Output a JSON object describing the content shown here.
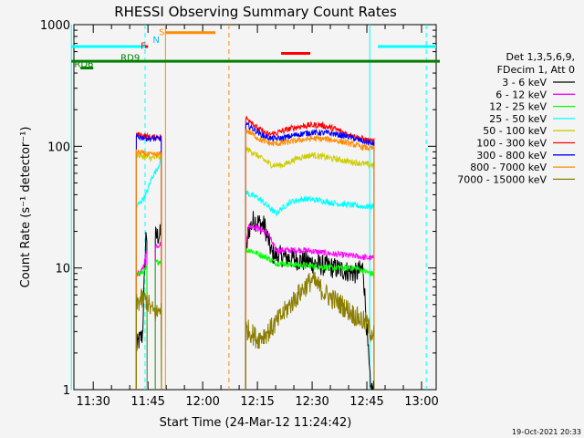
{
  "chart_data": {
    "type": "line",
    "title": "RHESSI Observing Summary Count Rates",
    "xlabel": "Start Time (24-Mar-12 11:24:42)",
    "ylabel": "Count Rate (s⁻¹ detector⁻¹)",
    "yscale": "log",
    "ylim": [
      1,
      1000
    ],
    "xlim": [
      "11:24:42",
      "13:04:00"
    ],
    "y_ticks": [
      {
        "value": 1,
        "label": "1"
      },
      {
        "value": 10,
        "label": "10"
      },
      {
        "value": 100,
        "label": "100"
      },
      {
        "value": 1000,
        "label": "1000"
      }
    ],
    "x_ticks": [
      {
        "minutes": 690,
        "label": "11:30"
      },
      {
        "minutes": 705,
        "label": "11:45"
      },
      {
        "minutes": 720,
        "label": "12:00"
      },
      {
        "minutes": 735,
        "label": "12:15"
      },
      {
        "minutes": 750,
        "label": "12:30"
      },
      {
        "minutes": 765,
        "label": "12:45"
      },
      {
        "minutes": 780,
        "label": "13:00"
      }
    ],
    "legend": {
      "placement": "right",
      "header": [
        "Det 1,3,5,6,9,",
        "FDecim 1, Att 0"
      ]
    },
    "series": [
      {
        "name": "3 - 6 keV",
        "color": "#000000",
        "segments": [
          {
            "start": 701.8,
            "end": 704.8,
            "points": [
              [
                701.8,
                2.2
              ],
              [
                702.5,
                2.5
              ],
              [
                703.5,
                2.8
              ],
              [
                704.0,
                8
              ],
              [
                704.5,
                20
              ],
              [
                704.8,
                17
              ]
            ]
          },
          {
            "start": 707.0,
            "end": 708.7,
            "points": [
              [
                707.0,
                18
              ],
              [
                708.7,
                19
              ]
            ]
          },
          {
            "start": 731.8,
            "end": 767.0,
            "points": [
              [
                731.8,
                12
              ],
              [
                732.5,
                20
              ],
              [
                734,
                25
              ],
              [
                737,
                22
              ],
              [
                739,
                13
              ],
              [
                744,
                12
              ],
              [
                750,
                11
              ],
              [
                756,
                10
              ],
              [
                762,
                9
              ],
              [
                764,
                10
              ],
              [
                765,
                3
              ],
              [
                766,
                1
              ],
              [
                767,
                1
              ]
            ]
          }
        ]
      },
      {
        "name": "6 - 12 keV",
        "color": "#ff00ff",
        "segments": [
          {
            "start": 701.8,
            "end": 704.8,
            "points": [
              [
                701.8,
                9
              ],
              [
                703,
                9
              ],
              [
                704,
                11
              ],
              [
                704.8,
                15
              ]
            ]
          },
          {
            "start": 707.0,
            "end": 708.7,
            "points": [
              [
                707.0,
                15
              ],
              [
                708.7,
                16
              ]
            ]
          },
          {
            "start": 731.8,
            "end": 767.0,
            "points": [
              [
                731.8,
                15
              ],
              [
                732.5,
                22
              ],
              [
                734,
                22
              ],
              [
                738,
                19
              ],
              [
                740,
                14
              ],
              [
                748,
                14
              ],
              [
                756,
                13
              ],
              [
                762,
                12.5
              ],
              [
                766,
                12
              ]
            ]
          }
        ]
      },
      {
        "name": "12 - 25 keV",
        "color": "#00ff00",
        "segments": [
          {
            "start": 701.8,
            "end": 704.8,
            "points": [
              [
                701.8,
                9
              ],
              [
                703,
                9
              ],
              [
                704,
                9.5
              ],
              [
                704.8,
                10
              ]
            ]
          },
          {
            "start": 707.0,
            "end": 708.7,
            "points": [
              [
                707.0,
                11
              ],
              [
                708.7,
                11.5
              ]
            ]
          },
          {
            "start": 731.8,
            "end": 767.0,
            "points": [
              [
                731.8,
                14
              ],
              [
                733,
                14
              ],
              [
                738,
                12
              ],
              [
                740,
                11
              ],
              [
                748,
                10.5
              ],
              [
                756,
                10
              ],
              [
                762,
                10
              ],
              [
                766,
                9
              ]
            ]
          }
        ]
      },
      {
        "name": "25 - 50 keV",
        "color": "#00ffff",
        "segments": [
          {
            "start": 701.8,
            "end": 708.7,
            "points": [
              [
                701.8,
                32
              ],
              [
                703,
                35
              ],
              [
                704.5,
                40
              ],
              [
                706,
                55
              ],
              [
                707.5,
                65
              ],
              [
                708.7,
                80
              ]
            ]
          },
          {
            "start": 731.8,
            "end": 767.0,
            "points": [
              [
                731.8,
                42
              ],
              [
                733,
                40
              ],
              [
                735,
                38
              ],
              [
                738,
                32
              ],
              [
                740,
                28
              ],
              [
                744,
                35
              ],
              [
                748,
                37
              ],
              [
                752,
                36
              ],
              [
                756,
                34
              ],
              [
                760,
                33
              ],
              [
                764,
                32
              ],
              [
                766,
                32
              ]
            ]
          }
        ]
      },
      {
        "name": "50 - 100 keV",
        "color": "#cccc00",
        "segments": [
          {
            "start": 701.8,
            "end": 708.7,
            "points": [
              [
                701.8,
                85
              ],
              [
                704,
                82
              ],
              [
                706,
                80
              ],
              [
                708.7,
                82
              ]
            ]
          },
          {
            "start": 731.8,
            "end": 767.0,
            "points": [
              [
                731.8,
                95
              ],
              [
                733,
                92
              ],
              [
                736,
                80
              ],
              [
                739,
                70
              ],
              [
                742,
                70
              ],
              [
                746,
                80
              ],
              [
                750,
                85
              ],
              [
                755,
                80
              ],
              [
                760,
                75
              ],
              [
                764,
                72
              ],
              [
                766,
                70
              ]
            ]
          }
        ]
      },
      {
        "name": "100 - 300 keV",
        "color": "#ff0000",
        "segments": [
          {
            "start": 701.8,
            "end": 708.7,
            "points": [
              [
                701.8,
                125
              ],
              [
                704,
                122
              ],
              [
                706,
                118
              ],
              [
                708.7,
                120
              ]
            ]
          },
          {
            "start": 731.8,
            "end": 767.0,
            "points": [
              [
                731.8,
                170
              ],
              [
                733,
                165
              ],
              [
                735,
                140
              ],
              [
                738,
                125
              ],
              [
                740,
                128
              ],
              [
                744,
                140
              ],
              [
                748,
                148
              ],
              [
                752,
                150
              ],
              [
                756,
                140
              ],
              [
                760,
                125
              ],
              [
                764,
                115
              ],
              [
                766,
                110
              ]
            ]
          }
        ]
      },
      {
        "name": "300 - 800 keV",
        "color": "#0000ff",
        "segments": [
          {
            "start": 701.8,
            "end": 708.7,
            "points": [
              [
                701.8,
                120
              ],
              [
                704,
                118
              ],
              [
                706,
                115
              ],
              [
                708.7,
                116
              ]
            ]
          },
          {
            "start": 731.8,
            "end": 767.0,
            "points": [
              [
                731.8,
                150
              ],
              [
                733,
                145
              ],
              [
                736,
                125
              ],
              [
                739,
                115
              ],
              [
                742,
                117
              ],
              [
                746,
                125
              ],
              [
                750,
                130
              ],
              [
                755,
                128
              ],
              [
                760,
                120
              ],
              [
                764,
                110
              ],
              [
                766,
                106
              ]
            ]
          }
        ]
      },
      {
        "name": "800 - 7000 keV",
        "color": "#ff8c00",
        "segments": [
          {
            "start": 701.8,
            "end": 708.7,
            "points": [
              [
                701.8,
                90
              ],
              [
                704,
                87
              ],
              [
                706,
                85
              ],
              [
                708.7,
                86
              ]
            ]
          },
          {
            "start": 731.8,
            "end": 767.0,
            "points": [
              [
                731.8,
                135
              ],
              [
                733,
                130
              ],
              [
                736,
                112
              ],
              [
                739,
                105
              ],
              [
                742,
                106
              ],
              [
                746,
                112
              ],
              [
                750,
                116
              ],
              [
                755,
                114
              ],
              [
                760,
                106
              ],
              [
                764,
                98
              ],
              [
                766,
                96
              ]
            ]
          }
        ]
      },
      {
        "name": "7000 - 15000 keV",
        "color": "#8b7d00",
        "segments": [
          {
            "start": 701.8,
            "end": 708.7,
            "points": [
              [
                701.8,
                5
              ],
              [
                703,
                5.5
              ],
              [
                704.5,
                5.5
              ],
              [
                706,
                4.5
              ],
              [
                707.5,
                4.2
              ],
              [
                708.7,
                5
              ]
            ]
          },
          {
            "start": 731.8,
            "end": 767.0,
            "points": [
              [
                731.8,
                3.2
              ],
              [
                733,
                3
              ],
              [
                735,
                2.6
              ],
              [
                738,
                3
              ],
              [
                740,
                3.5
              ],
              [
                744,
                5
              ],
              [
                748,
                7
              ],
              [
                750,
                8
              ],
              [
                754,
                6
              ],
              [
                758,
                5
              ],
              [
                762,
                4
              ],
              [
                765,
                3.5
              ],
              [
                766,
                3
              ]
            ]
          }
        ]
      }
    ],
    "annotations": [
      {
        "label": "RD6",
        "color": "#008000",
        "text_at": [
          684.8,
          480
        ],
        "bar": [
          686.5,
          690.0
        ],
        "bar_y": 440
      },
      {
        "label": "RD9",
        "color": "#008000",
        "text_at": [
          697.5,
          540
        ],
        "bar": [
          684.0,
          785.0
        ],
        "bar_y": 500
      },
      {
        "label": "F",
        "color": "#ff0000",
        "text_at": [
          703.0,
          680
        ],
        "bar": [
          704.2,
          705.0
        ],
        "bar_y": 660
      },
      {
        "label": "N",
        "color": "#00bfff",
        "text_at": [
          706.3,
          760
        ]
      },
      {
        "label": "S",
        "color": "#ff8c00",
        "text_at": [
          708.0,
          880
        ],
        "bar": [
          709.8,
          723.5
        ],
        "bar_y": 860
      }
    ],
    "bars_unlabeled": [
      {
        "color": "#00ffff",
        "range": [
          684.0,
          704.5
        ],
        "y": 660
      },
      {
        "color": "#00ffff",
        "range": [
          768.0,
          784.0
        ],
        "y": 660
      },
      {
        "color": "#ff0000",
        "range": [
          741.5,
          749.5
        ],
        "y": 580
      }
    ],
    "vlines": [
      {
        "at": 684.0,
        "color": "#00ffff",
        "style": "solid"
      },
      {
        "at": 704.2,
        "color": "#00ffff",
        "style": "dashed"
      },
      {
        "at": 709.8,
        "color": "#ff8c00",
        "style": "solid"
      },
      {
        "at": 727.2,
        "color": "#ff8c00",
        "style": "dashed"
      },
      {
        "at": 765.8,
        "color": "#00ffff",
        "style": "solid"
      },
      {
        "at": 781.3,
        "color": "#00ffff",
        "style": "dashed"
      }
    ],
    "timestamp": "19-Oct-2021 20:33"
  }
}
